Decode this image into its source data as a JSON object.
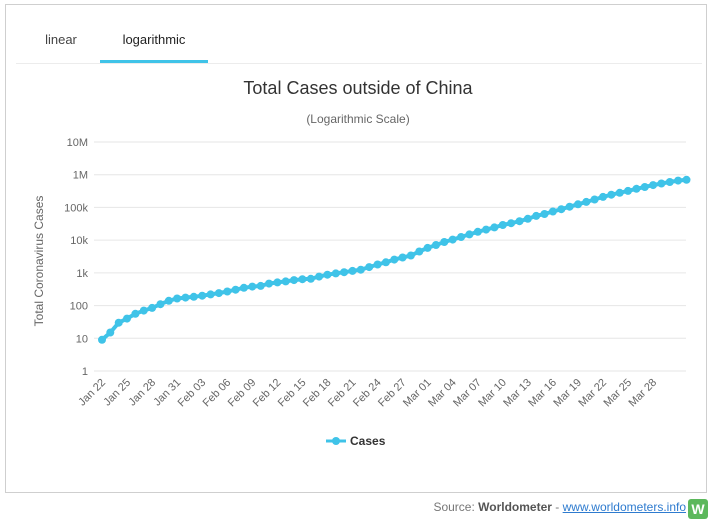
{
  "tabs": {
    "linear": "linear",
    "logarithmic": "logarithmic"
  },
  "source": {
    "prefix": "Source: ",
    "name": "Worldometer",
    "sep": " - ",
    "url": "www.worldometers.info",
    "logo": "W"
  },
  "colors": {
    "series": "#3fc3e8",
    "tab_active": "#3fc3e8"
  },
  "chart_data": {
    "type": "line",
    "title": "Total Cases outside of China",
    "subtitle": "(Logarithmic Scale)",
    "ylabel": "Total Coronavirus Cases",
    "xlabel": "",
    "yscale": "log",
    "ylim": [
      1,
      10000000
    ],
    "ytick_labels": [
      "1",
      "10",
      "100",
      "1k",
      "10k",
      "100k",
      "1M",
      "10M"
    ],
    "xtick_labels": [
      "Jan 22",
      "Jan 25",
      "Jan 28",
      "Jan 31",
      "Feb 03",
      "Feb 06",
      "Feb 09",
      "Feb 12",
      "Feb 15",
      "Feb 18",
      "Feb 21",
      "Feb 24",
      "Feb 27",
      "Mar 01",
      "Mar 04",
      "Mar 07",
      "Mar 10",
      "Mar 13",
      "Mar 16",
      "Mar 19",
      "Mar 22",
      "Mar 25",
      "Mar 28"
    ],
    "grid": true,
    "legend": "bottom-center",
    "series": [
      {
        "name": "Cases",
        "values": [
          9,
          15,
          30,
          40,
          56,
          70,
          85,
          110,
          140,
          165,
          175,
          185,
          200,
          220,
          240,
          270,
          305,
          350,
          380,
          400,
          470,
          510,
          550,
          600,
          640,
          660,
          770,
          880,
          960,
          1050,
          1150,
          1250,
          1500,
          1800,
          2100,
          2550,
          2950,
          3400,
          4500,
          5800,
          7100,
          8800,
          10400,
          12500,
          15000,
          18000,
          21000,
          24500,
          29000,
          33000,
          38000,
          45000,
          55000,
          63000,
          75000,
          88000,
          105000,
          125000,
          148000,
          175000,
          210000,
          245000,
          280000,
          320000,
          370000,
          420000,
          480000,
          540000,
          600000,
          660000,
          700000
        ]
      }
    ]
  }
}
